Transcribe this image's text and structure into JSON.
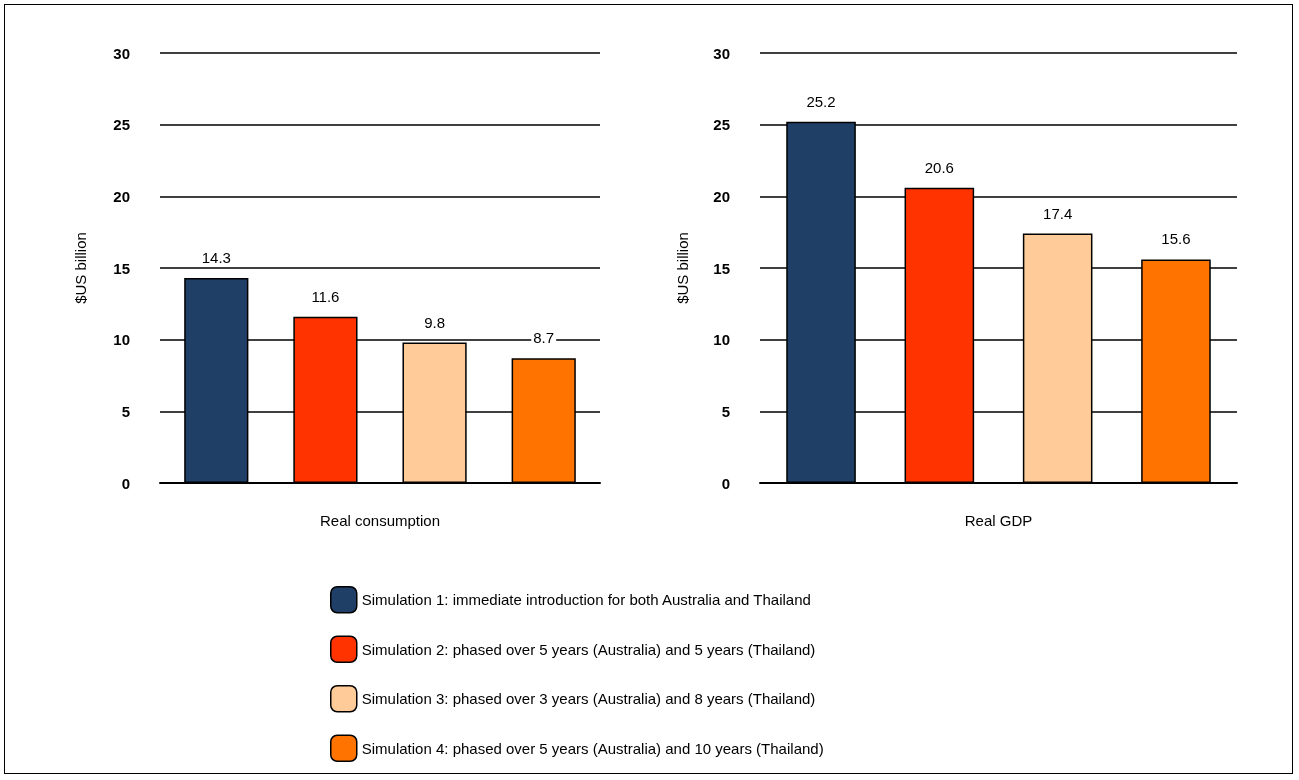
{
  "chart_data": [
    {
      "type": "bar",
      "categories": [
        "Real consumption"
      ],
      "ylabel": "$US billion",
      "ylim": [
        0,
        30
      ],
      "yticks": [
        0,
        5,
        10,
        15,
        20,
        25,
        30
      ],
      "grid": "y",
      "data_labels": true,
      "legend": false,
      "series": [
        {
          "color": "#1f3f66",
          "values": [
            14.3
          ]
        },
        {
          "color": "#ff3300",
          "values": [
            11.6
          ]
        },
        {
          "color": "#ffcc99",
          "values": [
            9.8
          ]
        },
        {
          "color": "#ff7400",
          "values": [
            8.7
          ]
        }
      ]
    },
    {
      "type": "bar",
      "categories": [
        "Real GDP"
      ],
      "ylabel": "$US billion",
      "ylim": [
        0,
        30
      ],
      "yticks": [
        0,
        5,
        10,
        15,
        20,
        25,
        30
      ],
      "grid": "y",
      "data_labels": true,
      "legend": "bottom",
      "series": [
        {
          "name": "Simulation 1: immediate introduction for both Australia and Thailand",
          "color": "#1f3f66",
          "values": [
            25.2
          ]
        },
        {
          "name": "Simulation 2: phased over 5 years (Australia) and 5 years (Thailand)",
          "color": "#ff3300",
          "values": [
            20.6
          ]
        },
        {
          "name": "Simulation 3: phased over 3 years (Australia) and 8 years (Thailand)",
          "color": "#ffcc99",
          "values": [
            17.4
          ]
        },
        {
          "name": "Simulation 4: phased over 5 years (Australia) and 10 years (Thailand)",
          "color": "#ff7400",
          "values": [
            15.6
          ]
        }
      ]
    }
  ]
}
